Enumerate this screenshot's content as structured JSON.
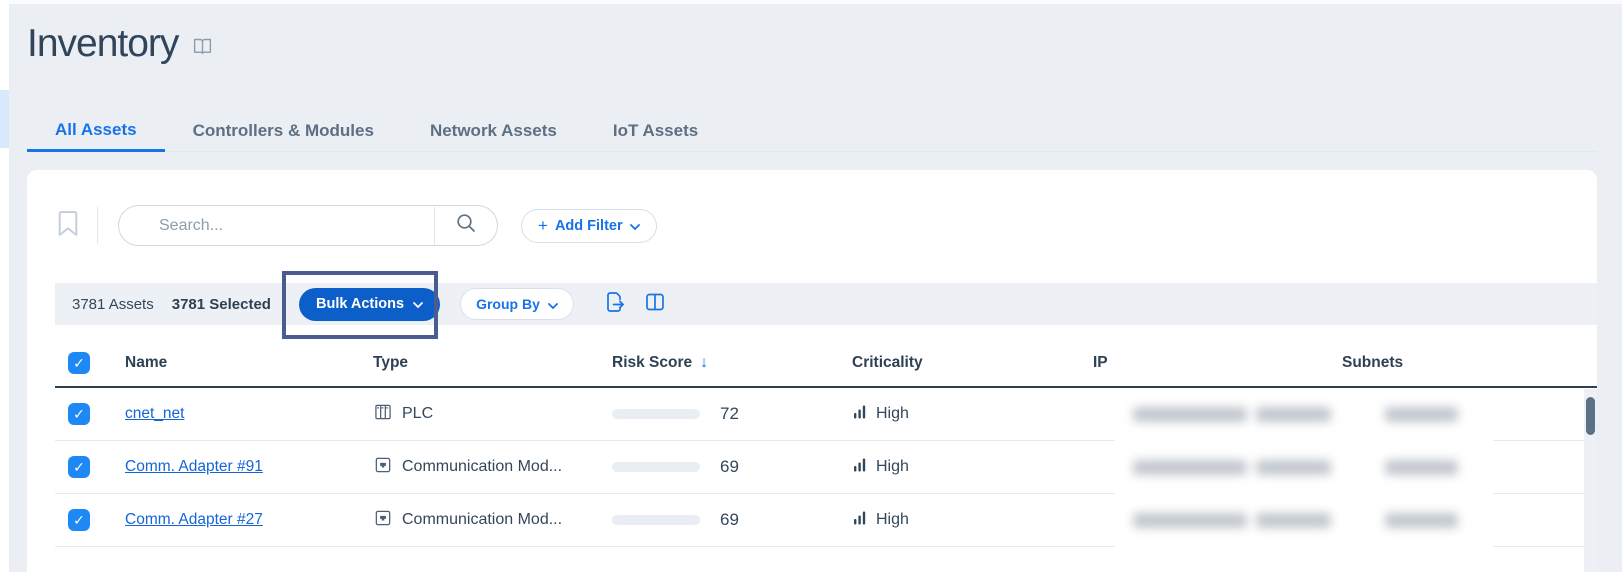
{
  "page": {
    "title": "Inventory"
  },
  "tabs": [
    {
      "label": "All Assets",
      "active": true
    },
    {
      "label": "Controllers & Modules",
      "active": false
    },
    {
      "label": "Network Assets",
      "active": false
    },
    {
      "label": "IoT Assets",
      "active": false
    }
  ],
  "search": {
    "placeholder": "Search..."
  },
  "filter": {
    "add_filter_label": "Add Filter"
  },
  "toolbar": {
    "assets_count": "3781 Assets",
    "selected_count": "3781 Selected",
    "bulk_actions_label": "Bulk Actions",
    "group_by_label": "Group By"
  },
  "table": {
    "columns": [
      "Name",
      "Type",
      "Risk Score",
      "Criticality",
      "IP",
      "Subnets"
    ],
    "sort": {
      "column": "Risk Score",
      "direction": "desc"
    },
    "select_all_checked": true,
    "rows": [
      {
        "selected": true,
        "name": "cnet_net",
        "type": "PLC",
        "type_icon": "plc-icon",
        "risk_score": 72,
        "risk_color": "#e0004f",
        "criticality": "High",
        "ip_redacted": true,
        "subnets_redacted": true
      },
      {
        "selected": true,
        "name": "Comm. Adapter #91",
        "type": "Communication Mod...",
        "type_icon": "communication-module-icon",
        "risk_score": 69,
        "risk_color": "#f9b73f",
        "criticality": "High",
        "ip_redacted": true,
        "subnets_redacted": true
      },
      {
        "selected": true,
        "name": "Comm. Adapter #27",
        "type": "Communication Mod...",
        "type_icon": "communication-module-icon",
        "risk_score": 69,
        "risk_color": "#f9b73f",
        "criticality": "High",
        "ip_redacted": true,
        "subnets_redacted": true
      }
    ]
  },
  "icons": {
    "check": "✓",
    "sort_desc": "↓",
    "plus": "+"
  },
  "colors": {
    "accent_blue": "#1873e8",
    "bulk_button_blue": "#0c5fc9",
    "annotation_box": "#4a5c92",
    "risk_high_red": "#e0004f",
    "risk_medium_amber": "#f9b73f",
    "text_navy": "#33475b"
  }
}
